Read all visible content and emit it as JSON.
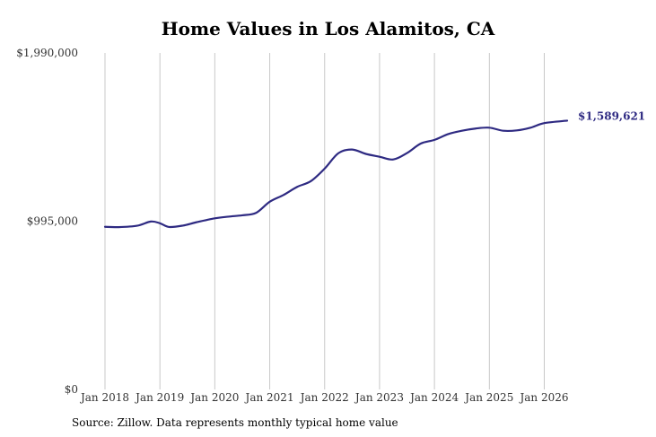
{
  "chart_data": {
    "type": "line",
    "title": "Home Values in Los Alamitos, CA",
    "xlabel": "",
    "ylabel": "",
    "ylim": [
      0,
      1990000
    ],
    "xlim": [
      "2018-01",
      "2026-06"
    ],
    "y_ticks": [
      {
        "value": 0,
        "label": "$0"
      },
      {
        "value": 995000,
        "label": "$995,000"
      },
      {
        "value": 1990000,
        "label": "$1,990,000"
      }
    ],
    "x_ticks": [
      {
        "value": "2018-01",
        "label": "Jan 2018"
      },
      {
        "value": "2019-01",
        "label": "Jan 2019"
      },
      {
        "value": "2020-01",
        "label": "Jan 2020"
      },
      {
        "value": "2021-01",
        "label": "Jan 2021"
      },
      {
        "value": "2022-01",
        "label": "Jan 2022"
      },
      {
        "value": "2023-01",
        "label": "Jan 2023"
      },
      {
        "value": "2024-01",
        "label": "Jan 2024"
      },
      {
        "value": "2025-01",
        "label": "Jan 2025"
      },
      {
        "value": "2026-01",
        "label": "Jan 2026"
      }
    ],
    "grid": {
      "vertical": true,
      "horizontal": false
    },
    "series": [
      {
        "color": "#2e2a82",
        "end_label": "$1,589,621",
        "points": [
          {
            "x": "2018-01",
            "y": 962000
          },
          {
            "x": "2018-04",
            "y": 960000
          },
          {
            "x": "2018-08",
            "y": 968000
          },
          {
            "x": "2018-11",
            "y": 993000
          },
          {
            "x": "2019-01",
            "y": 983000
          },
          {
            "x": "2019-03",
            "y": 961000
          },
          {
            "x": "2019-06",
            "y": 969000
          },
          {
            "x": "2019-09",
            "y": 989000
          },
          {
            "x": "2020-01",
            "y": 1012000
          },
          {
            "x": "2020-04",
            "y": 1022000
          },
          {
            "x": "2020-07",
            "y": 1030000
          },
          {
            "x": "2020-10",
            "y": 1044000
          },
          {
            "x": "2021-01",
            "y": 1110000
          },
          {
            "x": "2021-04",
            "y": 1150000
          },
          {
            "x": "2021-07",
            "y": 1198000
          },
          {
            "x": "2021-10",
            "y": 1232000
          },
          {
            "x": "2022-01",
            "y": 1306000
          },
          {
            "x": "2022-04",
            "y": 1397000
          },
          {
            "x": "2022-07",
            "y": 1419000
          },
          {
            "x": "2022-10",
            "y": 1393000
          },
          {
            "x": "2023-01",
            "y": 1376000
          },
          {
            "x": "2023-04",
            "y": 1360000
          },
          {
            "x": "2023-07",
            "y": 1398000
          },
          {
            "x": "2023-10",
            "y": 1454000
          },
          {
            "x": "2024-01",
            "y": 1476000
          },
          {
            "x": "2024-04",
            "y": 1510000
          },
          {
            "x": "2024-07",
            "y": 1530000
          },
          {
            "x": "2024-10",
            "y": 1543000
          },
          {
            "x": "2025-01",
            "y": 1548000
          },
          {
            "x": "2025-04",
            "y": 1530000
          },
          {
            "x": "2025-07",
            "y": 1532000
          },
          {
            "x": "2025-10",
            "y": 1548000
          },
          {
            "x": "2026-01",
            "y": 1575000
          },
          {
            "x": "2026-06",
            "y": 1589621
          }
        ]
      }
    ]
  },
  "footer": {
    "source": "Source: Zillow. Data represents monthly typical home value"
  }
}
